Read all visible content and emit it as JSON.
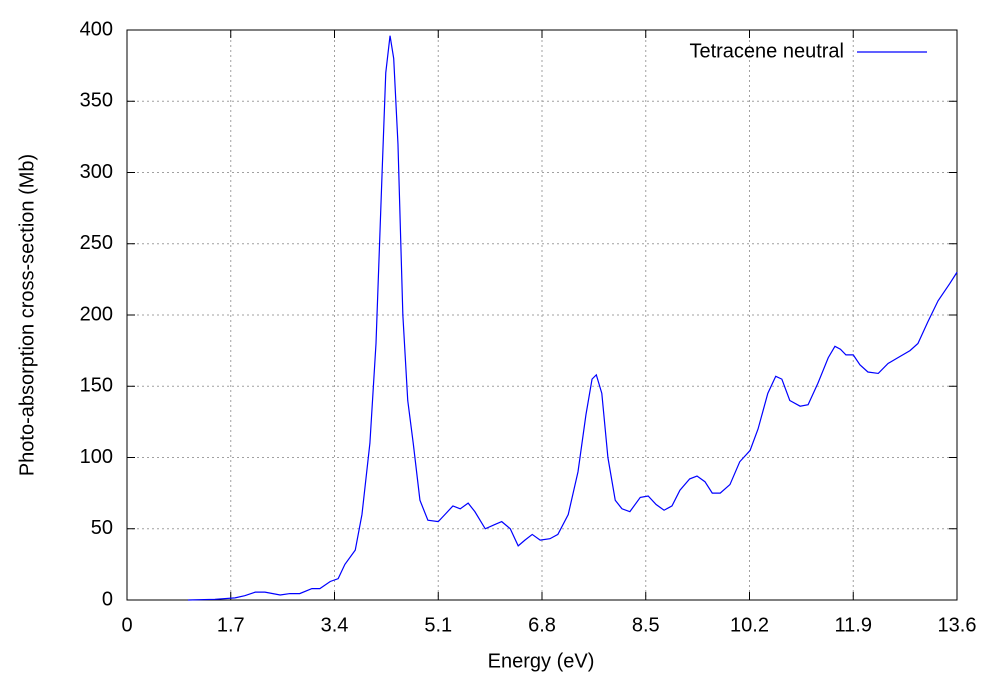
{
  "chart_data": {
    "type": "line",
    "xlabel": "Energy (eV)",
    "ylabel": "Photo-absorption cross-section (Mb)",
    "x": [
      1.0,
      1.44,
      1.77,
      1.93,
      2.1,
      2.26,
      2.51,
      2.67,
      2.83,
      3.03,
      3.16,
      3.33,
      3.46,
      3.57,
      3.74,
      3.85,
      3.98,
      4.08,
      4.18,
      4.24,
      4.31,
      4.37,
      4.44,
      4.52,
      4.6,
      4.69,
      4.8,
      4.93,
      5.1,
      5.21,
      5.34,
      5.46,
      5.59,
      5.7,
      5.87,
      6.03,
      6.14,
      6.28,
      6.41,
      6.52,
      6.64,
      6.77,
      6.93,
      7.06,
      7.23,
      7.39,
      7.52,
      7.62,
      7.69,
      7.78,
      7.88,
      8.0,
      8.11,
      8.24,
      8.41,
      8.54,
      8.67,
      8.8,
      8.93,
      9.06,
      9.22,
      9.34,
      9.47,
      9.59,
      9.72,
      9.88,
      10.04,
      10.21,
      10.34,
      10.5,
      10.63,
      10.73,
      10.86,
      11.03,
      11.16,
      11.32,
      11.49,
      11.6,
      11.69,
      11.78,
      11.9,
      12.01,
      12.14,
      12.31,
      12.47,
      12.63,
      12.83,
      12.96,
      13.12,
      13.29,
      13.48,
      13.6
    ],
    "series": [
      {
        "name": "Tetracene neutral",
        "color": "#0000ff",
        "values": [
          0,
          0.5,
          1.5,
          3,
          5.5,
          5.5,
          3.5,
          4.5,
          4.5,
          8,
          8,
          13,
          15,
          25,
          35,
          60,
          110,
          180,
          300,
          370,
          396,
          380,
          320,
          200,
          140,
          110,
          70,
          56,
          55,
          60,
          66,
          64,
          68,
          62,
          50,
          53,
          55,
          50,
          38,
          42,
          46,
          42,
          43,
          46,
          60,
          90,
          130,
          155,
          158,
          145,
          100,
          70,
          64,
          62,
          72,
          73,
          67,
          63,
          66,
          77,
          85,
          87,
          83,
          75,
          75,
          81,
          97,
          105,
          120,
          145,
          157,
          155,
          140,
          136,
          137,
          152,
          170,
          178,
          176,
          172,
          172,
          165,
          160,
          159,
          166,
          170,
          175,
          180,
          195,
          210,
          222,
          230
        ]
      }
    ],
    "xlim": [
      0,
      13.6
    ],
    "ylim": [
      0,
      400
    ],
    "xticks": [
      0,
      1.7,
      3.4,
      5.1,
      6.8,
      8.5,
      10.2,
      11.9,
      13.6
    ],
    "yticks": [
      0,
      50,
      100,
      150,
      200,
      250,
      300,
      350,
      400
    ],
    "grid": true,
    "legend": "top-right"
  }
}
